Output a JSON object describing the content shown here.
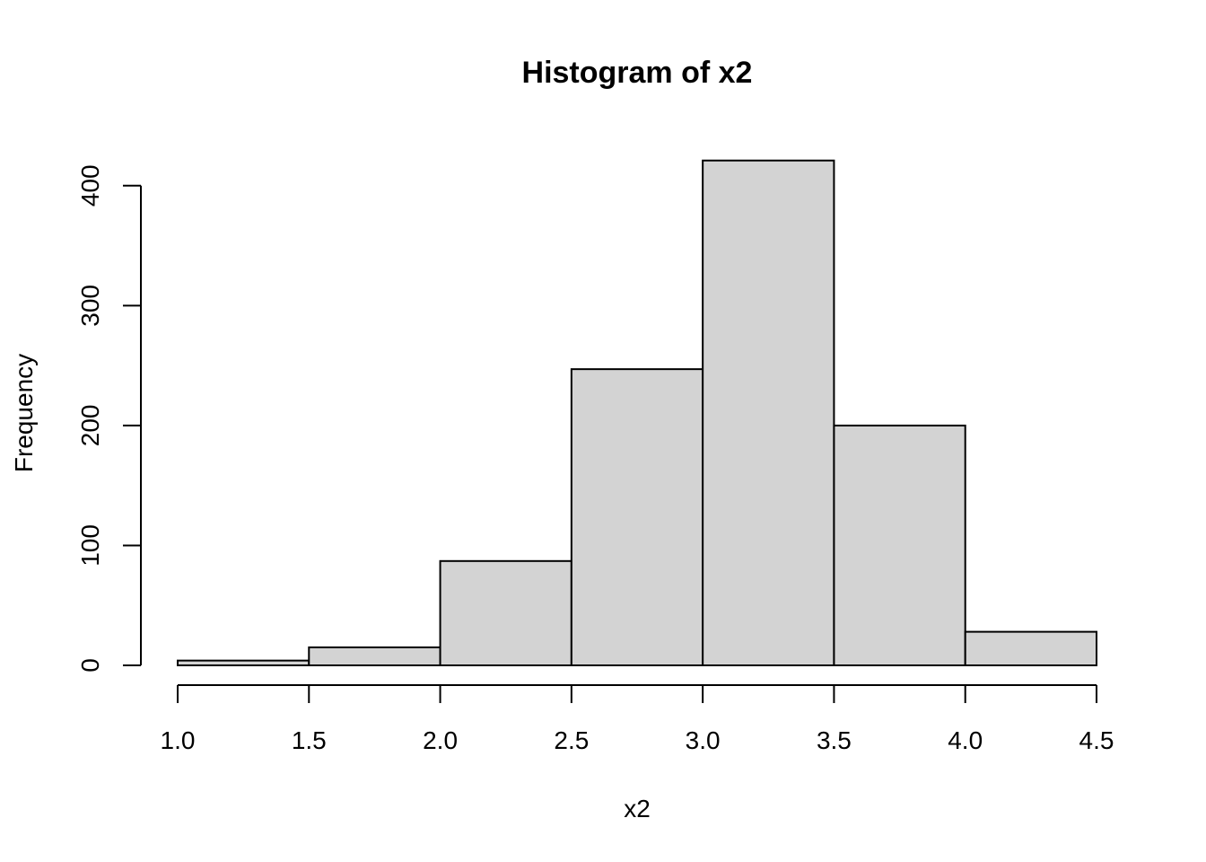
{
  "chart_data": {
    "type": "bar",
    "title": "Histogram of x2",
    "xlabel": "x2",
    "ylabel": "Frequency",
    "bins": [
      {
        "from": 1.0,
        "to": 1.5,
        "count": 4
      },
      {
        "from": 1.5,
        "to": 2.0,
        "count": 15
      },
      {
        "from": 2.0,
        "to": 2.5,
        "count": 87
      },
      {
        "from": 2.5,
        "to": 3.0,
        "count": 247
      },
      {
        "from": 3.0,
        "to": 3.5,
        "count": 421
      },
      {
        "from": 3.5,
        "to": 4.0,
        "count": 200
      },
      {
        "from": 4.0,
        "to": 4.5,
        "count": 28
      }
    ],
    "x_ticks": [
      "1.0",
      "1.5",
      "2.0",
      "2.5",
      "3.0",
      "3.5",
      "4.0",
      "4.5"
    ],
    "y_ticks": [
      "0",
      "100",
      "200",
      "300",
      "400"
    ],
    "xlim": [
      1.0,
      4.5
    ],
    "ylim": [
      0,
      421
    ],
    "bar_color": "#d3d3d3",
    "border_color": "#000000",
    "grid": false,
    "legend": "none"
  }
}
